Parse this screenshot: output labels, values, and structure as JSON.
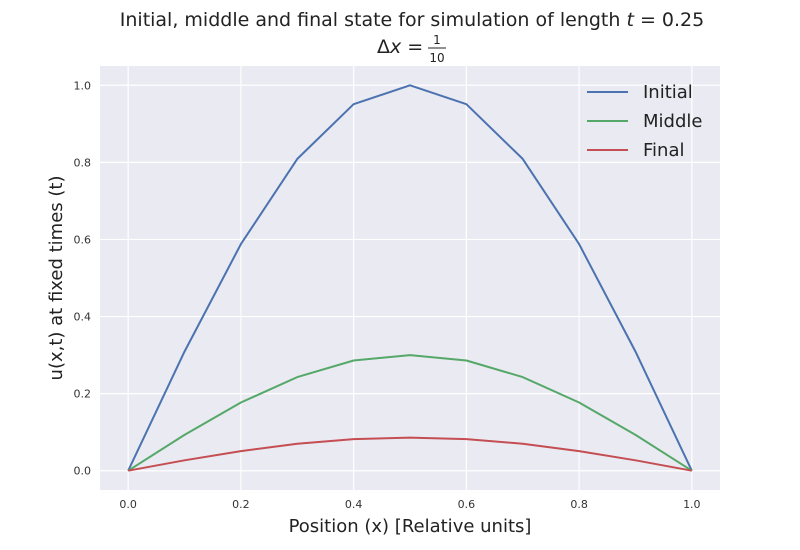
{
  "chart_data": {
    "type": "line",
    "title_line1_prefix": "Initial, middle and final state for simulation of length ",
    "title_line1_var": "t",
    "title_line1_suffix": " = 0.25",
    "title_line2_prefix": "Δ",
    "title_line2_var": "x",
    "title_line2_eq": " = ",
    "title_line2_num": "1",
    "title_line2_den": "10",
    "xlabel": "Position (x) [Relative units]",
    "ylabel": "u(x,t) at fixed times (t)",
    "xlim": [
      -0.05,
      1.05
    ],
    "ylim": [
      -0.05,
      1.05
    ],
    "xticks": [
      0.0,
      0.2,
      0.4,
      0.6,
      0.8,
      1.0
    ],
    "yticks": [
      0.0,
      0.2,
      0.4,
      0.6,
      0.8,
      1.0
    ],
    "xtick_labels": [
      "0.0",
      "0.2",
      "0.4",
      "0.6",
      "0.8",
      "1.0"
    ],
    "ytick_labels": [
      "0.0",
      "0.2",
      "0.4",
      "0.6",
      "0.8",
      "1.0"
    ],
    "grid": true,
    "legend_position": "top-right",
    "x": [
      0.0,
      0.1,
      0.2,
      0.3,
      0.4,
      0.5,
      0.6,
      0.7,
      0.8,
      0.9,
      1.0
    ],
    "series": [
      {
        "name": "Initial",
        "color": "#4c72b0",
        "values": [
          0.0,
          0.309,
          0.588,
          0.809,
          0.951,
          1.0,
          0.951,
          0.809,
          0.588,
          0.309,
          0.0
        ]
      },
      {
        "name": "Middle",
        "color": "#55a868",
        "values": [
          0.0,
          0.093,
          0.177,
          0.243,
          0.286,
          0.3,
          0.286,
          0.243,
          0.177,
          0.093,
          0.0
        ]
      },
      {
        "name": "Final",
        "color": "#c44e52",
        "values": [
          0.0,
          0.027,
          0.051,
          0.07,
          0.082,
          0.086,
          0.082,
          0.07,
          0.051,
          0.027,
          0.0
        ]
      }
    ],
    "colors": {
      "plot_background": "#eaeaf2",
      "grid": "#ffffff"
    }
  }
}
